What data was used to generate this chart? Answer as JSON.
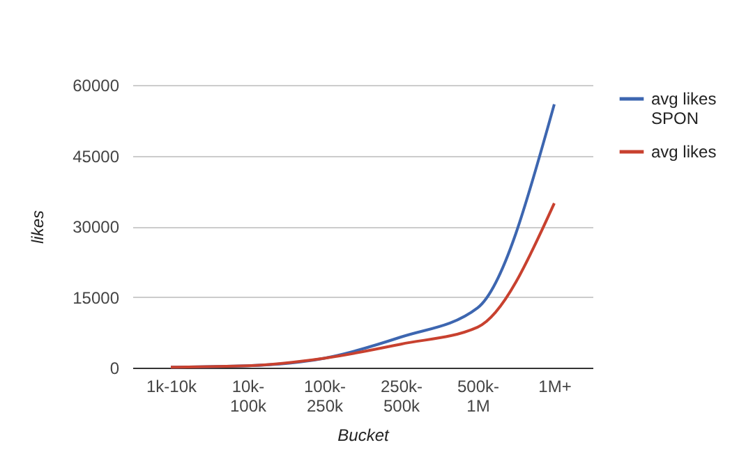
{
  "chart_data": {
    "type": "line",
    "xlabel": "Bucket",
    "ylabel": "likes",
    "categories": [
      "1k-10k",
      "10k-100k",
      "100k-250k",
      "250k-500k",
      "500k-1M",
      "1M+"
    ],
    "series": [
      {
        "name": "avg likes SPON",
        "color": "#3d66b0",
        "values": [
          100,
          400,
          2000,
          6500,
          12700,
          55900
        ]
      },
      {
        "name": "avg likes",
        "color": "#c8412f",
        "values": [
          100,
          400,
          2000,
          5000,
          8600,
          34900
        ]
      }
    ],
    "ylim": [
      0,
      60000
    ],
    "yticks": [
      0,
      15000,
      30000,
      45000,
      60000
    ],
    "grid": "y",
    "legend": "top right"
  }
}
